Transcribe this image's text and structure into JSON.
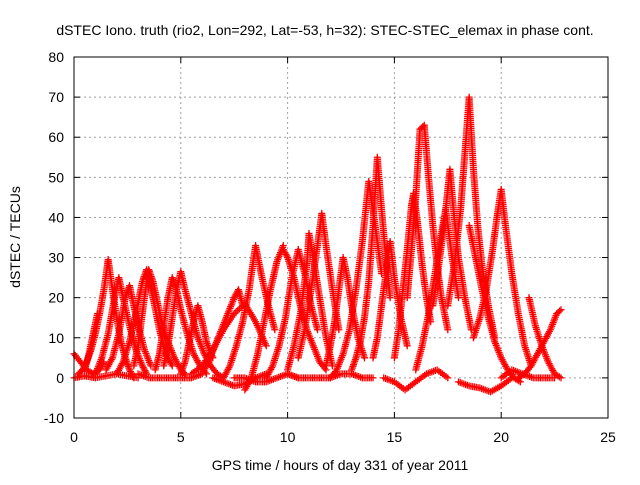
{
  "chart_data": {
    "type": "scatter",
    "title": "dSTEC Iono. truth (rio2, Lon=292, Lat=-53, h=32): STEC-STEC_elemax in phase cont.",
    "xlabel": "GPS time / hours of day 331 of year 2011",
    "ylabel": "dSTEC  / TECUs",
    "xlim": [
      0,
      25
    ],
    "ylim": [
      -10,
      80
    ],
    "xticks": [
      0,
      5,
      10,
      15,
      20,
      25
    ],
    "yticks": [
      -10,
      0,
      10,
      20,
      30,
      40,
      50,
      60,
      70,
      80
    ],
    "grid": true,
    "marker": "+",
    "marker_color": "#ff0000",
    "series": [
      {
        "x": [
          0.0,
          0.3,
          0.6,
          0.9,
          1.2,
          1.4
        ],
        "values": [
          6.0,
          4.0,
          2.0,
          1.0,
          2.0,
          4.0
        ]
      },
      {
        "x": [
          0.2,
          0.4,
          0.6,
          0.8,
          1.0,
          1.2,
          1.4,
          1.6,
          1.8,
          2.0,
          2.2,
          2.4,
          2.6,
          2.8
        ],
        "values": [
          1.0,
          2.0,
          4.0,
          7.0,
          11.0,
          16.0,
          22.0,
          29.5,
          22.0,
          15.0,
          9.0,
          5.0,
          2.0,
          0.0
        ]
      },
      {
        "x": [
          0.5,
          0.7,
          0.9,
          1.1
        ],
        "values": [
          2.0,
          6.0,
          11.0,
          16.0
        ]
      },
      {
        "x": [
          1.0,
          1.3,
          1.6,
          1.9,
          2.1,
          2.3,
          2.6,
          2.9,
          3.2,
          3.4
        ],
        "values": [
          1.0,
          5.0,
          11.0,
          20.0,
          25.0,
          20.0,
          13.0,
          7.0,
          3.0,
          1.0
        ]
      },
      {
        "x": [
          1.5,
          1.8,
          2.1,
          2.4,
          2.6,
          2.8,
          3.0,
          3.3,
          3.6
        ],
        "values": [
          2.0,
          5.0,
          11.0,
          20.0,
          23.0,
          18.0,
          13.0,
          7.0,
          3.0
        ]
      },
      {
        "x": [
          2.0,
          2.3,
          2.6,
          2.9,
          3.2,
          3.4,
          3.7,
          4.0,
          4.3,
          4.6
        ],
        "values": [
          1.0,
          4.0,
          9.0,
          16.0,
          24.0,
          27.0,
          20.0,
          12.0,
          6.0,
          3.0
        ]
      },
      {
        "x": [
          2.8,
          3.0,
          3.2,
          3.4,
          3.5,
          3.7,
          3.9,
          4.1,
          4.4,
          4.7,
          5.0,
          5.2
        ],
        "values": [
          3.0,
          8.0,
          16.0,
          24.0,
          27.0,
          24.0,
          19.0,
          14.0,
          9.0,
          5.0,
          2.0,
          1.0
        ]
      },
      {
        "x": [
          3.0,
          3.5,
          4.0,
          4.5,
          5.0,
          5.5,
          6.0
        ],
        "values": [
          1.0,
          0.0,
          0.0,
          0.0,
          0.0,
          0.0,
          1.0
        ]
      },
      {
        "x": [
          3.8,
          4.0,
          4.2,
          4.4,
          4.6,
          4.8,
          5.0,
          5.3,
          5.6,
          5.9,
          6.2
        ],
        "values": [
          2.0,
          6.0,
          13.0,
          20.0,
          25.0,
          22.0,
          17.0,
          11.0,
          6.0,
          3.0,
          1.0
        ]
      },
      {
        "x": [
          4.2,
          4.4,
          4.6,
          4.8,
          5.0,
          5.2,
          5.5,
          5.8,
          6.1,
          6.4,
          6.7,
          7.0
        ],
        "values": [
          3.0,
          8.0,
          15.0,
          22.0,
          26.5,
          22.0,
          16.0,
          10.0,
          6.0,
          3.0,
          1.0,
          0.0
        ]
      },
      {
        "x": [
          5.0,
          5.2,
          5.4,
          5.6,
          5.8,
          6.0,
          6.2,
          6.5
        ],
        "values": [
          1.0,
          4.0,
          9.0,
          14.0,
          18.0,
          14.0,
          9.0,
          5.0
        ]
      },
      {
        "x": [
          5.5,
          6.0,
          6.5,
          7.0,
          7.5,
          8.0,
          8.5,
          9.0
        ],
        "values": [
          1.0,
          3.0,
          7.0,
          12.0,
          16.0,
          18.5,
          14.0,
          8.0
        ]
      },
      {
        "x": [
          6.0,
          6.3,
          6.6,
          6.9,
          7.2,
          7.5,
          7.7,
          7.9
        ],
        "values": [
          1.0,
          4.0,
          8.0,
          12.0,
          16.0,
          20.0,
          22.0,
          18.0
        ]
      },
      {
        "x": [
          6.5,
          7.0,
          7.5,
          8.0,
          8.5,
          9.0
        ],
        "values": [
          0.0,
          -1.0,
          -2.0,
          -1.5,
          0.0,
          1.0
        ]
      },
      {
        "x": [
          7.0,
          7.3,
          7.6,
          7.9,
          8.2,
          8.5,
          8.8,
          9.1,
          9.4
        ],
        "values": [
          0.0,
          3.0,
          8.0,
          14.0,
          22.0,
          33.0,
          25.0,
          18.0,
          12.0
        ]
      },
      {
        "x": [
          7.5,
          8.0,
          8.5,
          9.0,
          9.5,
          10.0,
          10.5
        ],
        "values": [
          0.0,
          0.0,
          -1.0,
          -1.0,
          0.0,
          1.0,
          0.0
        ]
      },
      {
        "x": [
          8.0,
          8.3,
          8.6,
          8.9,
          9.2,
          9.5,
          9.8
        ],
        "values": [
          -3.0,
          0.0,
          6.0,
          14.0,
          22.0,
          29.0,
          33.0
        ]
      },
      {
        "x": [
          9.0,
          9.3,
          9.6,
          9.9,
          10.2,
          10.5,
          10.8,
          11.1,
          11.4
        ],
        "values": [
          0.0,
          3.0,
          8.0,
          15.0,
          25.0,
          32.0,
          26.0,
          18.0,
          12.0
        ]
      },
      {
        "x": [
          9.8,
          10.0,
          10.3,
          10.6,
          10.9,
          11.2,
          11.5,
          11.8
        ],
        "values": [
          32.0,
          30.0,
          25.0,
          18.0,
          12.0,
          8.0,
          4.0,
          2.0
        ]
      },
      {
        "x": [
          10.0,
          10.3,
          10.6,
          10.9,
          11.0,
          11.2,
          11.5,
          11.8,
          12.1
        ],
        "values": [
          2.0,
          8.0,
          16.0,
          28.0,
          36.0,
          30.0,
          20.0,
          10.0,
          3.0
        ]
      },
      {
        "x": [
          10.5,
          10.8,
          11.1,
          11.4,
          11.6,
          11.8,
          12.1,
          12.4
        ],
        "values": [
          5.0,
          12.0,
          22.0,
          33.0,
          41.0,
          33.0,
          22.0,
          12.0
        ]
      },
      {
        "x": [
          10.0,
          10.5,
          11.0,
          11.5,
          12.0,
          12.5,
          13.0,
          13.5,
          14.0
        ],
        "values": [
          1.0,
          0.0,
          0.0,
          0.0,
          0.0,
          1.0,
          1.0,
          0.0,
          0.0
        ]
      },
      {
        "x": [
          11.8,
          12.0,
          12.2,
          12.4,
          12.6,
          12.8,
          13.0,
          13.3,
          13.6
        ],
        "values": [
          3.0,
          8.0,
          14.0,
          22.0,
          30.0,
          25.0,
          18.0,
          10.0,
          5.0
        ]
      },
      {
        "x": [
          12.0,
          12.3,
          12.6,
          12.9,
          13.2,
          13.5,
          13.8,
          14.1,
          14.4
        ],
        "values": [
          0.0,
          2.0,
          6.0,
          12.0,
          22.0,
          34.0,
          49.0,
          38.0,
          26.0
        ]
      },
      {
        "x": [
          13.0,
          13.2,
          13.4,
          13.6,
          13.8,
          14.0,
          14.2,
          14.4,
          14.6,
          14.8
        ],
        "values": [
          2.0,
          5.0,
          9.0,
          15.0,
          24.0,
          38.0,
          55.0,
          42.0,
          30.0,
          20.0
        ]
      },
      {
        "x": [
          14.0,
          14.2,
          14.4,
          14.6,
          14.8,
          15.0,
          15.3,
          15.6
        ],
        "values": [
          5.0,
          10.0,
          18.0,
          26.0,
          34.0,
          25.0,
          15.0,
          8.0
        ]
      },
      {
        "x": [
          14.5,
          15.0,
          15.5,
          16.0,
          16.5,
          17.0,
          17.5
        ],
        "values": [
          0.0,
          -1.0,
          -3.0,
          -1.0,
          1.0,
          2.0,
          0.0
        ]
      },
      {
        "x": [
          15.0,
          15.2,
          15.4,
          15.6,
          15.8,
          15.9,
          16.1,
          16.3,
          16.5,
          16.7
        ],
        "values": [
          5.0,
          12.0,
          22.0,
          32.0,
          43.0,
          46.0,
          38.0,
          28.0,
          20.0,
          14.0
        ]
      },
      {
        "x": [
          15.6,
          15.8,
          16.0,
          16.2,
          16.4,
          16.6,
          16.8,
          17.0,
          17.2,
          17.5
        ],
        "values": [
          20.0,
          32.0,
          45.0,
          62.0,
          63.0,
          50.0,
          38.0,
          28.0,
          20.0,
          12.0
        ]
      },
      {
        "x": [
          16.0,
          16.3,
          16.6,
          16.9,
          17.2,
          17.4,
          17.7,
          18.0
        ],
        "values": [
          2.0,
          8.0,
          16.0,
          26.0,
          36.0,
          42.0,
          30.0,
          20.0
        ]
      },
      {
        "x": [
          16.8,
          17.0,
          17.2,
          17.4,
          17.6,
          17.8,
          18.0,
          18.3,
          18.6
        ],
        "values": [
          18.0,
          25.0,
          33.0,
          42.0,
          52.0,
          40.0,
          30.0,
          20.0,
          12.0
        ]
      },
      {
        "x": [
          17.5,
          17.8,
          18.1,
          18.3,
          18.5,
          18.7,
          18.9,
          19.1,
          19.4,
          19.7
        ],
        "values": [
          18.0,
          28.0,
          42.0,
          56.0,
          70.0,
          52.0,
          38.0,
          28.0,
          18.0,
          10.0
        ]
      },
      {
        "x": [
          18.0,
          18.5,
          19.0,
          19.5,
          20.0,
          20.5
        ],
        "values": [
          -1.0,
          -2.0,
          -2.5,
          -3.5,
          -2.0,
          0.0
        ]
      },
      {
        "x": [
          18.5,
          18.8,
          19.1,
          19.4,
          19.7,
          20.0,
          20.3,
          20.6,
          20.9
        ],
        "values": [
          38.0,
          30.0,
          22.0,
          15.0,
          9.0,
          5.0,
          2.0,
          0.0,
          -1.0
        ]
      },
      {
        "x": [
          18.7,
          19.0,
          19.3,
          19.6,
          19.8,
          20.0,
          20.2,
          20.5,
          20.8,
          21.1,
          21.4
        ],
        "values": [
          10.0,
          15.0,
          22.0,
          32.0,
          40.0,
          47.0,
          38.0,
          26.0,
          16.0,
          8.0,
          3.0
        ]
      },
      {
        "x": [
          20.0,
          20.5,
          21.0,
          21.5,
          22.0,
          22.5
        ],
        "values": [
          0.0,
          2.0,
          1.0,
          0.0,
          0.0,
          0.0
        ]
      },
      {
        "x": [
          21.3,
          21.6,
          21.9,
          22.2,
          22.5,
          22.8
        ],
        "values": [
          20.0,
          13.0,
          8.0,
          4.0,
          1.0,
          0.0
        ]
      },
      {
        "x": [
          20.8,
          21.1,
          21.4,
          21.7,
          22.0,
          22.3,
          22.6,
          22.8
        ],
        "values": [
          0.0,
          1.0,
          3.0,
          6.0,
          9.0,
          12.0,
          16.0,
          17.0
        ]
      },
      {
        "x": [
          0.0,
          0.5,
          1.0,
          2.0,
          3.0
        ],
        "values": [
          0.0,
          0.5,
          0.0,
          1.0,
          0.0
        ]
      }
    ]
  }
}
